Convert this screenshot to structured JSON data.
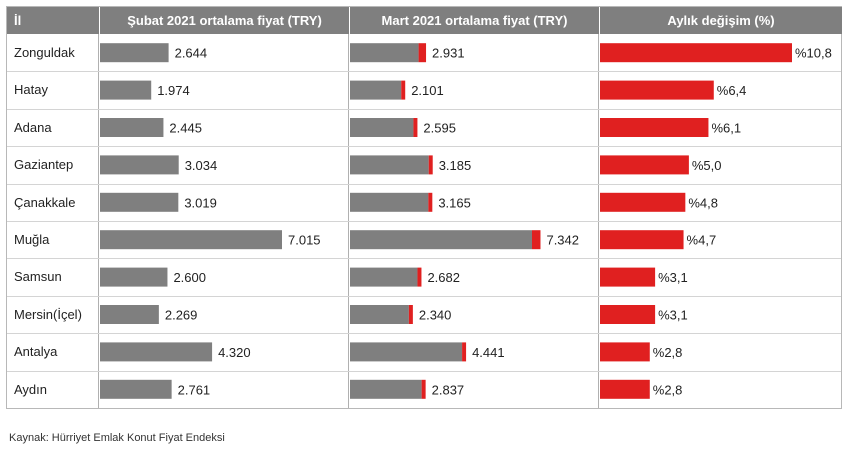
{
  "header": {
    "col_province": "İl",
    "col_feb": "Şubat 2021 ortalama fiyat (TRY)",
    "col_mar": "Mart 2021 ortalama fiyat (TRY)",
    "col_change": "Aylık değişim (%)"
  },
  "rows": [
    {
      "name": "Zonguldak",
      "feb_label": "2.644",
      "mar_label": "2.931",
      "change_label": "%10,8"
    },
    {
      "name": "Hatay",
      "feb_label": "1.974",
      "mar_label": "2.101",
      "change_label": "%6,4"
    },
    {
      "name": "Adana",
      "feb_label": "2.445",
      "mar_label": "2.595",
      "change_label": "%6,1"
    },
    {
      "name": "Gaziantep",
      "feb_label": "3.034",
      "mar_label": "3.185",
      "change_label": "%5,0"
    },
    {
      "name": "Çanakkale",
      "feb_label": "3.019",
      "mar_label": "3.165",
      "change_label": "%4,8"
    },
    {
      "name": "Muğla",
      "feb_label": "7.015",
      "mar_label": "7.342",
      "change_label": "%4,7"
    },
    {
      "name": "Samsun",
      "feb_label": "2.600",
      "mar_label": "2.682",
      "change_label": "%3,1"
    },
    {
      "name": "Mersin(İçel)",
      "feb_label": "2.269",
      "mar_label": "2.340",
      "change_label": "%3,1"
    },
    {
      "name": "Antalya",
      "feb_label": "4.320",
      "mar_label": "4.441",
      "change_label": "%2,8"
    },
    {
      "name": "Aydın",
      "feb_label": "2.761",
      "mar_label": "2.837",
      "change_label": "%2,8"
    }
  ],
  "source": "Kaynak: Hürriyet Emlak Konut Fiyat Endeksi",
  "colors": {
    "bar_gray": "#7f7f7f",
    "bar_red": "#e02020",
    "header_bg": "#7f7f7f"
  },
  "chart_data": {
    "type": "bar",
    "categories": [
      "Zonguldak",
      "Hatay",
      "Adana",
      "Gaziantep",
      "Çanakkale",
      "Muğla",
      "Samsun",
      "Mersin(İçel)",
      "Antalya",
      "Aydın"
    ],
    "series": [
      {
        "name": "Şubat 2021 ortalama fiyat (TRY)",
        "values": [
          2644,
          1974,
          2445,
          3034,
          3019,
          7015,
          2600,
          2269,
          4320,
          2761
        ]
      },
      {
        "name": "Mart 2021 ortalama fiyat (TRY)",
        "values": [
          2931,
          2101,
          2595,
          3185,
          3165,
          7342,
          2682,
          2340,
          4441,
          2837
        ]
      },
      {
        "name": "Aylık değişim (%)",
        "values": [
          10.8,
          6.4,
          6.1,
          5.0,
          4.8,
          4.7,
          3.1,
          3.1,
          2.8,
          2.8
        ]
      }
    ],
    "orientation": "horizontal"
  }
}
